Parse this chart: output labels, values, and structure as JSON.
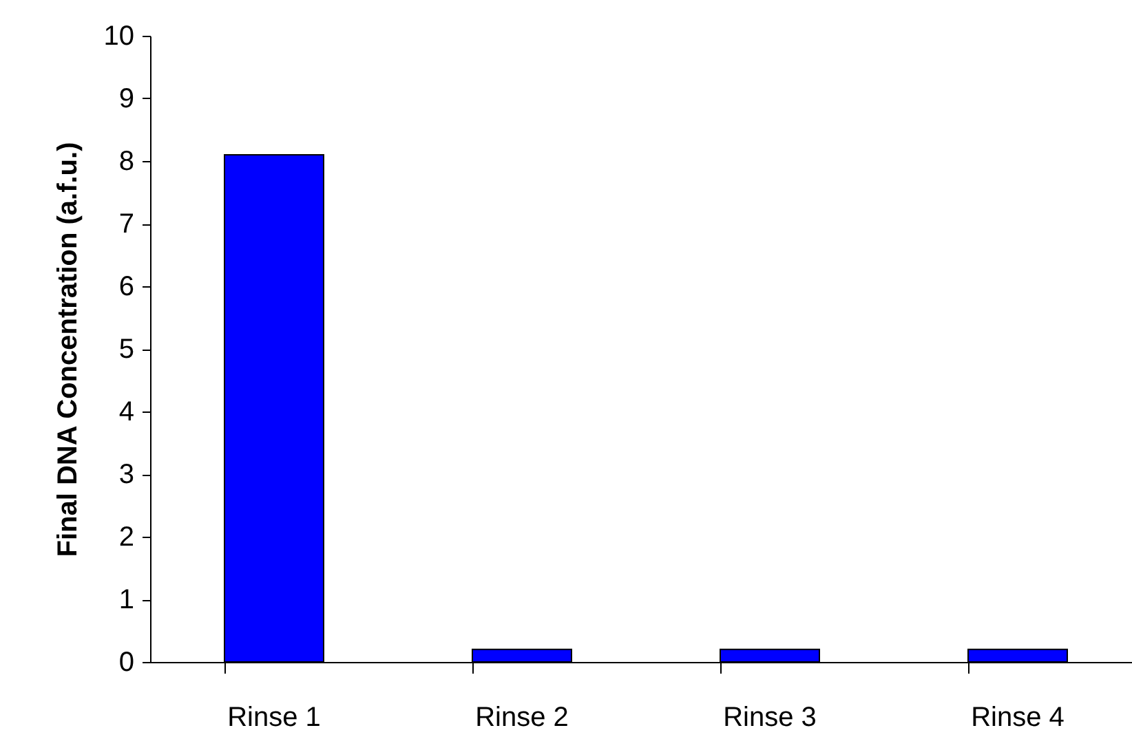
{
  "chart_data": {
    "type": "bar",
    "ylabel": "Final DNA Concentration (a.f.u.)",
    "categories": [
      "Rinse 1",
      "Rinse 2",
      "Rinse 3",
      "Rinse 4"
    ],
    "values": [
      8.1,
      0.2,
      0.2,
      0.2
    ],
    "color": "#0000ff",
    "ylim": [
      0,
      10
    ],
    "yticks": [
      0,
      1,
      2,
      3,
      4,
      5,
      6,
      7,
      8,
      9,
      10
    ],
    "grid": false
  }
}
